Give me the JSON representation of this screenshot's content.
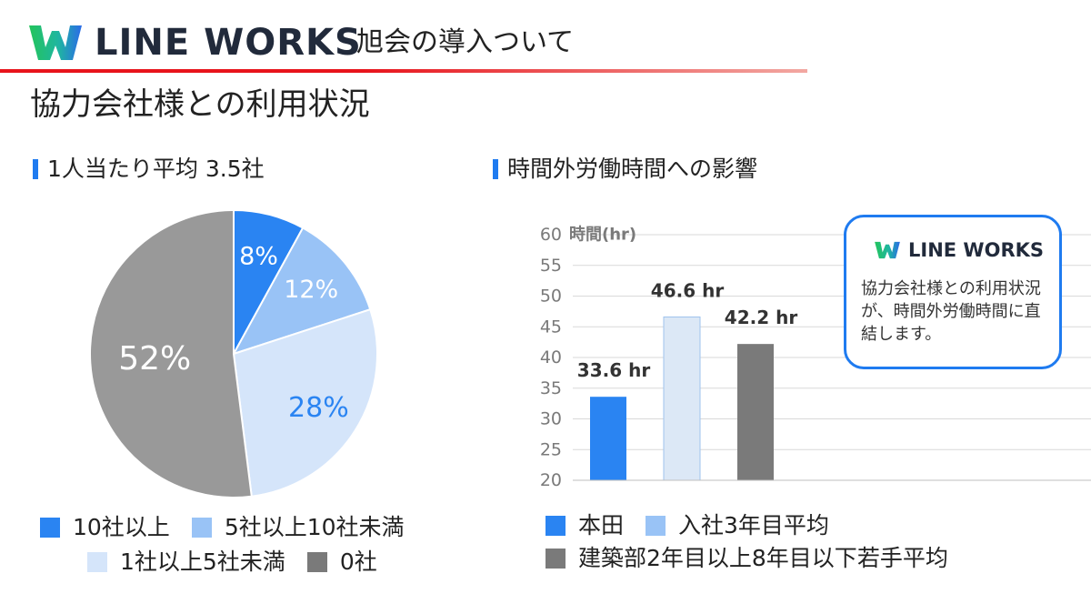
{
  "header": {
    "brand": "LINE WORKS",
    "subtitle": "旭会の導入ついて",
    "rule_color": "#e8141c"
  },
  "page_title": "協力会社様との利用状況",
  "colors": {
    "accent": "#1f7bf0",
    "blue_dark": "#2a84f2",
    "blue_mid": "#99c3f6",
    "blue_light": "#d5e5fa",
    "gray": "#999999",
    "gray_dark": "#7a7a7a",
    "logo_green": "#23c45b",
    "logo_blue": "#2b6be8"
  },
  "pie_section": {
    "heading": "1人当たり平均 3.5社"
  },
  "bar_section": {
    "heading": "時間外労働時間への影響"
  },
  "callout": {
    "brand": "LINE WORKS",
    "text": "協力会社様との利用状況が、時間外労働時間に直結します。"
  },
  "chart_data": [
    {
      "type": "pie",
      "categories": [
        "10社以上",
        "5社以上10社未満",
        "1社以上5社未満",
        "0社"
      ],
      "values": [
        8,
        12,
        28,
        52
      ],
      "data_labels": [
        "8%",
        "12%",
        "28%",
        "52%"
      ],
      "colors": [
        "#2a84f2",
        "#99c3f6",
        "#d5e5fa",
        "#999999"
      ],
      "label_colors": [
        "#ffffff",
        "#ffffff",
        "#2a84f2",
        "#ffffff"
      ],
      "legend": {
        "position": "bottom",
        "items": [
          {
            "label": "10社以上",
            "color": "#2a84f2"
          },
          {
            "label": "5社以上10社未満",
            "color": "#99c3f6"
          },
          {
            "label": "1社以上5社未満",
            "color": "#d5e5fa"
          },
          {
            "label": "0社",
            "color": "#7a7a7a"
          }
        ]
      }
    },
    {
      "type": "bar",
      "categories": [
        "本田",
        "入社3年目平均",
        "建築部2年目以上8年目以下若手平均"
      ],
      "values": [
        33.6,
        46.6,
        42.2
      ],
      "data_labels": [
        "33.6 hr",
        "46.6 hr",
        "42.2 hr"
      ],
      "colors": [
        "#2a84f2",
        "#dce8f6",
        "#7a7a7a"
      ],
      "ylabel": "時間(hr)",
      "ylim": [
        20,
        60
      ],
      "yticks": [
        20,
        25,
        30,
        35,
        40,
        45,
        50,
        55,
        60
      ],
      "grid": true,
      "legend": {
        "position": "bottom",
        "items": [
          {
            "label": "本田",
            "color": "#2a84f2"
          },
          {
            "label": "入社3年目平均",
            "color": "#99c3f6"
          },
          {
            "label": "建築部2年目以上8年目以下若手平均",
            "color": "#7a7a7a"
          }
        ]
      }
    }
  ]
}
